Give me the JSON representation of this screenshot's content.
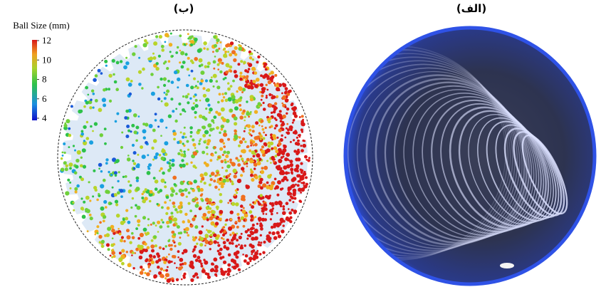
{
  "panels": [
    {
      "label": "(ب)"
    },
    {
      "label": "(الف)"
    }
  ],
  "colorbar": {
    "title": "Ball Size (mm)",
    "ticks": [
      12,
      10,
      8,
      6,
      4
    ]
  }
}
